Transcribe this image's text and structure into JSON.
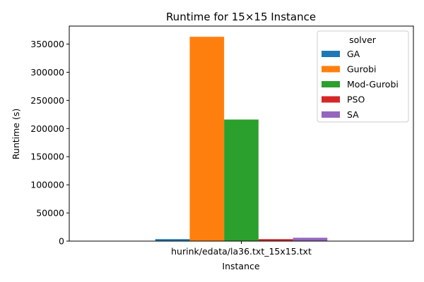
{
  "chart_data": {
    "type": "bar",
    "title": "Runtime for 15×15 Instance",
    "xlabel": "Instance",
    "ylabel": "Runtime (s)",
    "categories": [
      "hurink/edata/la36.txt_15x15.txt"
    ],
    "ylim": [
      0,
      382000
    ],
    "yticks": [
      0,
      50000,
      100000,
      150000,
      200000,
      250000,
      300000,
      350000
    ],
    "grid": false,
    "legend": {
      "title": "solver",
      "placement": "top-right"
    },
    "series": [
      {
        "name": "GA",
        "color": "#1f77b4",
        "values": [
          3500
        ]
      },
      {
        "name": "Gurobi",
        "color": "#ff7f0e",
        "values": [
          363000
        ]
      },
      {
        "name": "Mod-Gurobi",
        "color": "#2ca02c",
        "values": [
          216000
        ]
      },
      {
        "name": "PSO",
        "color": "#d62728",
        "values": [
          3500
        ]
      },
      {
        "name": "SA",
        "color": "#9467bd",
        "values": [
          6000
        ]
      }
    ]
  }
}
